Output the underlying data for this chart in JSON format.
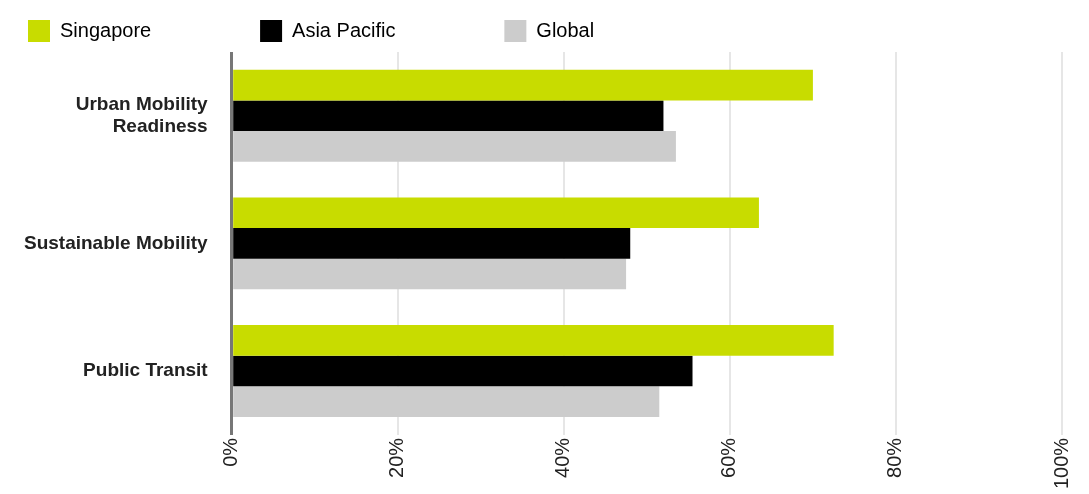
{
  "chart_data": {
    "type": "bar",
    "orientation": "horizontal",
    "categories": [
      "Urban Mobility Readiness",
      "Sustainable Mobility",
      "Public Transit"
    ],
    "series": [
      {
        "name": "Singapore",
        "color": "#c8dc00",
        "values": [
          70,
          63.5,
          72.5
        ]
      },
      {
        "name": "Asia Pacific",
        "color": "#000000",
        "values": [
          52,
          48,
          55.5
        ]
      },
      {
        "name": "Global",
        "color": "#cccccc",
        "values": [
          53.5,
          47.5,
          51.5
        ]
      }
    ],
    "xlim": [
      0,
      100
    ],
    "xticks": [
      {
        "value": 0,
        "label": "0%"
      },
      {
        "value": 20,
        "label": "20%"
      },
      {
        "value": 40,
        "label": "40%"
      },
      {
        "value": 60,
        "label": "60%"
      },
      {
        "value": 80,
        "label": "80%"
      },
      {
        "value": 100,
        "label": "100%"
      }
    ],
    "grid": "x",
    "legend": "top left"
  }
}
